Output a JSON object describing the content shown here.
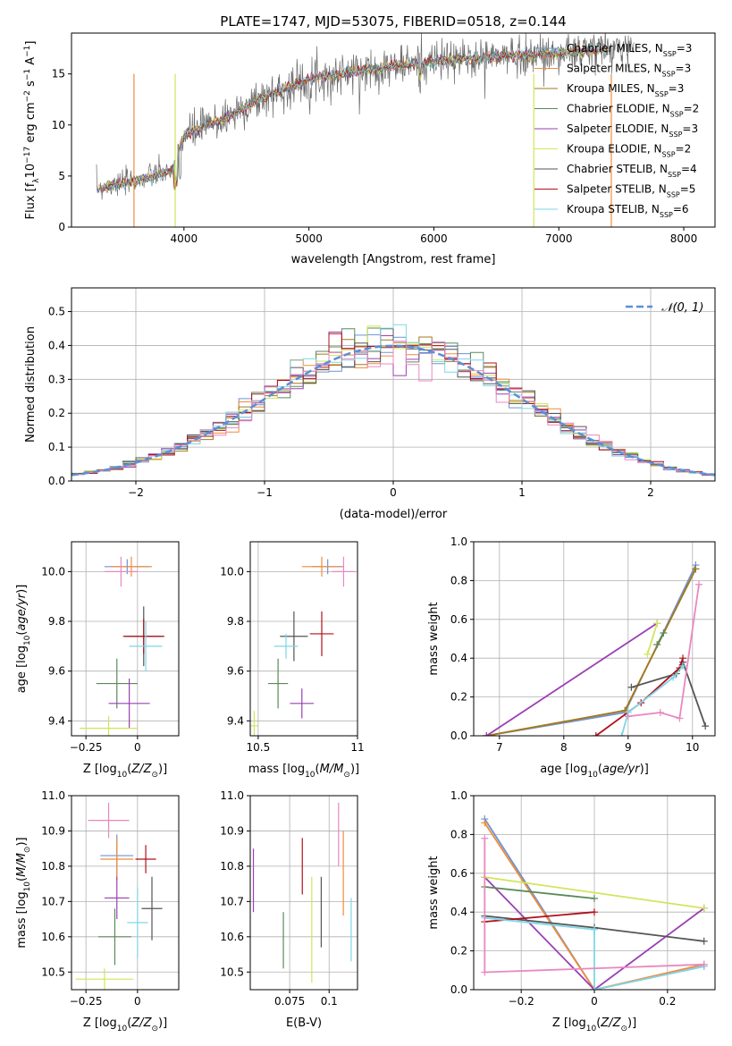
{
  "title": "PLATE=1747, MJD=53075, FIBERID=0518, z=0.144",
  "palette": {
    "Chabrier MILES": "#6a93d6",
    "Salpeter MILES": "#f08c3a",
    "Kroupa MILES": "#a07a20",
    "Chabrier ELODIE": "#5a8a5a",
    "Salpeter ELODIE": "#9b3fb5",
    "Kroupa ELODIE": "#cfe65a",
    "Chabrier STELIB": "#555555",
    "Salpeter STELIB": "#b0101a",
    "Kroupa STELIB": "#7fd6e6",
    "Kroupa STELIB alt": "#e888c0"
  },
  "chart_data": [
    {
      "type": "line",
      "title": "PLATE=1747, MJD=53075, FIBERID=0518, z=0.144",
      "xlabel": "wavelength [Angstrom, rest frame]",
      "ylabel": "Flux [fλ10⁻¹⁷ erg cm⁻² s⁻¹ A⁻¹]",
      "xlim": [
        3100,
        8250
      ],
      "ylim": [
        0,
        19
      ],
      "xticks": [
        4000,
        5000,
        6000,
        7000,
        8000
      ],
      "yticks": [
        0,
        5,
        10,
        15
      ],
      "grid": false,
      "legend_position": "top-right",
      "legend": [
        "Chabrier MILES, N_SSP=3",
        "Salpeter MILES, N_SSP=3",
        "Kroupa MILES, N_SSP=3",
        "Chabrier ELODIE, N_SSP=2",
        "Salpeter ELODIE, N_SSP=3",
        "Kroupa ELODIE, N_SSP=2",
        "Chabrier STELIB, N_SSP=4",
        "Salpeter STELIB, N_SSP=5",
        "Kroupa STELIB, N_SSP=6"
      ],
      "legend_html": [
        "Chabrier MILES, N<tspan baseline-shift='sub' font-size='8'>SSP</tspan>=3",
        "Salpeter MILES, N<tspan baseline-shift='sub' font-size='8'>SSP</tspan>=3",
        "Kroupa MILES, N<tspan baseline-shift='sub' font-size='8'>SSP</tspan>=3",
        "Chabrier ELODIE, N<tspan baseline-shift='sub' font-size='8'>SSP</tspan>=2",
        "Salpeter ELODIE, N<tspan baseline-shift='sub' font-size='8'>SSP</tspan>=3",
        "Kroupa ELODIE, N<tspan baseline-shift='sub' font-size='8'>SSP</tspan>=2",
        "Chabrier STELIB, N<tspan baseline-shift='sub' font-size='8'>SSP</tspan>=4",
        "Salpeter STELIB, N<tspan baseline-shift='sub' font-size='8'>SSP</tspan>=5",
        "Kroupa STELIB, N<tspan baseline-shift='sub' font-size='8'>SSP</tspan>=6"
      ],
      "spectrum_anchor": {
        "x": [
          3300,
          3600,
          3900,
          4000,
          4300,
          4600,
          5000,
          5500,
          6000,
          6500,
          7000,
          7500,
          8000
        ],
        "y": [
          3.8,
          4.5,
          5.5,
          9.0,
          10.5,
          12.5,
          14.5,
          15.5,
          16.2,
          16.7,
          17.0,
          17.5,
          17.8
        ]
      }
    },
    {
      "type": "histogram",
      "xlabel": "(data-model)/error",
      "ylabel": "Normed distribution",
      "xlim": [
        -2.5,
        2.5
      ],
      "ylim": [
        0,
        0.57
      ],
      "xticks": [
        -2,
        -1,
        0,
        1,
        2
      ],
      "yticks": [
        0.0,
        0.1,
        0.2,
        0.3,
        0.4,
        0.5
      ],
      "grid": true,
      "legend": [
        "𝒩(0, 1)"
      ],
      "legend_position": "top-right"
    },
    {
      "type": "scatter",
      "name": "age-vs-Z",
      "xlabel": "Z [log10(Z/Z⊙)]",
      "ylabel": "age [log10(age/yr)]",
      "xlim": [
        -0.32,
        0.2
      ],
      "ylim": [
        9.34,
        10.12
      ],
      "xticks": [
        -0.25,
        0.0
      ],
      "yticks": [
        9.4,
        9.6,
        9.8,
        10.0
      ],
      "grid": true,
      "points": [
        {
          "series": "Chabrier MILES",
          "x": -0.05,
          "y": 10.02,
          "xerr": 0.11,
          "yerr": 0.03
        },
        {
          "series": "Salpeter MILES",
          "x": -0.03,
          "y": 10.02,
          "xerr": 0.1,
          "yerr": 0.04
        },
        {
          "series": "Chabrier STELIB",
          "x": 0.03,
          "y": 9.74,
          "xerr": 0.09,
          "yerr": 0.12
        },
        {
          "series": "Salpeter STELIB",
          "x": 0.03,
          "y": 9.74,
          "xerr": 0.1,
          "yerr": 0.07
        },
        {
          "series": "Kroupa STELIB",
          "x": 0.04,
          "y": 9.7,
          "xerr": 0.08,
          "yerr": 0.1
        },
        {
          "series": "Chabrier ELODIE",
          "x": -0.1,
          "y": 9.55,
          "xerr": 0.1,
          "yerr": 0.1
        },
        {
          "series": "Salpeter ELODIE",
          "x": -0.04,
          "y": 9.47,
          "xerr": 0.1,
          "yerr": 0.1
        },
        {
          "series": "Kroupa ELODIE",
          "x": -0.14,
          "y": 9.37,
          "xerr": 0.14,
          "yerr": 0.05
        },
        {
          "series": "Kroupa STELIB alt",
          "x": -0.08,
          "y": 10.0,
          "xerr": 0.08,
          "yerr": 0.06
        }
      ]
    },
    {
      "type": "scatter",
      "name": "age-vs-mass",
      "xlabel": "mass [log10(M/M⊙)]",
      "ylabel": "",
      "xlim": [
        10.46,
        11.0
      ],
      "ylim": [
        9.34,
        10.12
      ],
      "xticks": [
        10.5,
        11.0
      ],
      "yticks": [
        9.4,
        9.6,
        9.8,
        10.0
      ],
      "grid": true,
      "points": [
        {
          "series": "Chabrier MILES",
          "x": 10.85,
          "y": 10.02,
          "xerr": 0.08,
          "yerr": 0.03
        },
        {
          "series": "Salpeter MILES",
          "x": 10.82,
          "y": 10.02,
          "xerr": 0.1,
          "yerr": 0.04
        },
        {
          "series": "Kroupa STELIB alt",
          "x": 10.93,
          "y": 10.0,
          "xerr": 0.06,
          "yerr": 0.06
        },
        {
          "series": "Chabrier STELIB",
          "x": 10.68,
          "y": 9.74,
          "xerr": 0.07,
          "yerr": 0.1
        },
        {
          "series": "Salpeter STELIB",
          "x": 10.82,
          "y": 9.75,
          "xerr": 0.06,
          "yerr": 0.09
        },
        {
          "series": "Kroupa STELIB",
          "x": 10.64,
          "y": 9.7,
          "xerr": 0.06,
          "yerr": 0.05
        },
        {
          "series": "Chabrier ELODIE",
          "x": 10.6,
          "y": 9.55,
          "xerr": 0.05,
          "yerr": 0.1
        },
        {
          "series": "Salpeter ELODIE",
          "x": 10.72,
          "y": 9.47,
          "xerr": 0.06,
          "yerr": 0.06
        },
        {
          "series": "Kroupa ELODIE",
          "x": 10.48,
          "y": 9.38,
          "xerr": 0.02,
          "yerr": 0.06
        }
      ]
    },
    {
      "type": "line",
      "name": "mass-weight-vs-age",
      "xlabel": "age [log10(age/yr)]",
      "ylabel": "mass weight",
      "xlim": [
        6.6,
        10.35
      ],
      "ylim": [
        0.0,
        1.0
      ],
      "xticks": [
        7,
        8,
        9,
        10
      ],
      "yticks": [
        0.0,
        0.2,
        0.4,
        0.6,
        0.8,
        1.0
      ],
      "grid": true,
      "series": [
        {
          "name": "Chabrier MILES",
          "x": [
            6.8,
            8.95,
            10.05
          ],
          "y": [
            0.0,
            0.12,
            0.88
          ]
        },
        {
          "name": "Salpeter MILES",
          "x": [
            6.8,
            8.95,
            10.05
          ],
          "y": [
            0.0,
            0.13,
            0.86
          ]
        },
        {
          "name": "Kroupa MILES",
          "x": [
            6.8,
            8.95,
            10.05
          ],
          "y": [
            0.0,
            0.13,
            0.86
          ]
        },
        {
          "name": "Salpeter ELODIE",
          "x": [
            6.8,
            9.45
          ],
          "y": [
            0.0,
            0.58
          ]
        },
        {
          "name": "Kroupa ELODIE",
          "x": [
            9.3,
            9.45
          ],
          "y": [
            0.42,
            0.58
          ]
        },
        {
          "name": "Chabrier ELODIE",
          "x": [
            9.45,
            9.55
          ],
          "y": [
            0.47,
            0.53
          ]
        },
        {
          "name": "Chabrier STELIB",
          "x": [
            9.05,
            9.75,
            9.85,
            10.2
          ],
          "y": [
            0.25,
            0.32,
            0.38,
            0.05
          ]
        },
        {
          "name": "Salpeter STELIB",
          "x": [
            8.5,
            9.2,
            9.8,
            9.85
          ],
          "y": [
            0.0,
            0.17,
            0.35,
            0.4
          ]
        },
        {
          "name": "Kroupa STELIB",
          "x": [
            8.9,
            9.0,
            9.7,
            9.85
          ],
          "y": [
            0.0,
            0.12,
            0.3,
            0.36
          ]
        },
        {
          "name": "Kroupa STELIB alt",
          "x": [
            9.0,
            9.5,
            9.8,
            10.1
          ],
          "y": [
            0.1,
            0.12,
            0.09,
            0.78
          ]
        }
      ]
    },
    {
      "type": "scatter",
      "name": "mass-vs-Z",
      "xlabel": "Z [log10(Z/Z⊙)]",
      "ylabel": "mass [log10(M/M⊙)]",
      "xlim": [
        -0.32,
        0.2
      ],
      "ylim": [
        10.45,
        11.0
      ],
      "xticks": [
        -0.25,
        0.0
      ],
      "yticks": [
        10.5,
        10.6,
        10.7,
        10.8,
        10.9,
        11.0
      ],
      "grid": true,
      "points": [
        {
          "series": "Kroupa STELIB alt",
          "x": -0.14,
          "y": 10.93,
          "xerr": 0.1,
          "yerr": 0.05
        },
        {
          "series": "Chabrier MILES",
          "x": -0.1,
          "y": 10.83,
          "xerr": 0.08,
          "yerr": 0.06
        },
        {
          "series": "Salpeter MILES",
          "x": -0.1,
          "y": 10.82,
          "xerr": 0.08,
          "yerr": 0.06
        },
        {
          "series": "Salpeter STELIB",
          "x": 0.04,
          "y": 10.82,
          "xerr": 0.05,
          "yerr": 0.04
        },
        {
          "series": "Salpeter ELODIE",
          "x": -0.1,
          "y": 10.71,
          "xerr": 0.06,
          "yerr": 0.06
        },
        {
          "series": "Chabrier STELIB",
          "x": 0.07,
          "y": 10.68,
          "xerr": 0.05,
          "yerr": 0.09
        },
        {
          "series": "Kroupa STELIB",
          "x": 0.0,
          "y": 10.64,
          "xerr": 0.05,
          "yerr": 0.1
        },
        {
          "series": "Chabrier ELODIE",
          "x": -0.11,
          "y": 10.6,
          "xerr": 0.08,
          "yerr": 0.08
        },
        {
          "series": "Kroupa ELODIE",
          "x": -0.16,
          "y": 10.48,
          "xerr": 0.14,
          "yerr": 0.03
        }
      ]
    },
    {
      "type": "scatter",
      "name": "mass-vs-EBV",
      "xlabel": "E(B-V)",
      "ylabel": "",
      "xlim": [
        0.05,
        0.118
      ],
      "ylim": [
        10.45,
        11.0
      ],
      "xticks": [
        0.075,
        0.1
      ],
      "yticks": [
        10.5,
        10.6,
        10.7,
        10.8,
        10.9,
        11.0
      ],
      "grid": true,
      "points": [
        {
          "series": "Salpeter ELODIE",
          "x": 0.052,
          "y": 10.76,
          "yerr": 0.09
        },
        {
          "series": "Chabrier ELODIE",
          "x": 0.071,
          "y": 10.59,
          "yerr": 0.08
        },
        {
          "series": "Salpeter STELIB",
          "x": 0.083,
          "y": 10.8,
          "yerr": 0.08
        },
        {
          "series": "Kroupa ELODIE",
          "x": 0.089,
          "y": 10.62,
          "yerr": 0.15
        },
        {
          "series": "Chabrier STELIB",
          "x": 0.095,
          "y": 10.67,
          "yerr": 0.1
        },
        {
          "series": "Kroupa STELIB alt",
          "x": 0.106,
          "y": 10.89,
          "yerr": 0.09
        },
        {
          "series": "Salpeter MILES",
          "x": 0.109,
          "y": 10.78,
          "yerr": 0.12
        },
        {
          "series": "Kroupa STELIB",
          "x": 0.114,
          "y": 10.62,
          "yerr": 0.09
        }
      ]
    },
    {
      "type": "line",
      "name": "mass-weight-vs-Z",
      "xlabel": "Z [log10(Z/Z⊙)]",
      "ylabel": "mass weight",
      "xlim": [
        -0.33,
        0.33
      ],
      "ylim": [
        0.0,
        1.0
      ],
      "xticks": [
        -0.2,
        0.0,
        0.2
      ],
      "yticks": [
        0.0,
        0.2,
        0.4,
        0.6,
        0.8,
        1.0
      ],
      "grid": true,
      "series": [
        {
          "name": "Chabrier MILES",
          "x": [
            -0.3,
            0.0,
            0.3
          ],
          "y": [
            0.88,
            0.0,
            0.12
          ]
        },
        {
          "name": "Salpeter MILES",
          "x": [
            -0.3,
            0.0,
            0.3
          ],
          "y": [
            0.86,
            0.0,
            0.13
          ]
        },
        {
          "name": "Salpeter ELODIE",
          "x": [
            -0.3,
            0.0,
            0.3
          ],
          "y": [
            0.58,
            0.0,
            0.42
          ]
        },
        {
          "name": "Kroupa ELODIE",
          "x": [
            -0.3,
            0.3
          ],
          "y": [
            0.58,
            0.42
          ]
        },
        {
          "name": "Chabrier ELODIE",
          "x": [
            -0.3,
            0.0
          ],
          "y": [
            0.53,
            0.47
          ]
        },
        {
          "name": "Chabrier STELIB",
          "x": [
            -0.3,
            0.0,
            0.3
          ],
          "y": [
            0.38,
            0.32,
            0.25
          ]
        },
        {
          "name": "Salpeter STELIB",
          "x": [
            -0.3,
            0.0
          ],
          "y": [
            0.35,
            0.4
          ]
        },
        {
          "name": "Kroupa STELIB",
          "x": [
            -0.3,
            0.0,
            0.0,
            0.3
          ],
          "y": [
            0.37,
            0.31,
            0.0,
            0.12
          ]
        },
        {
          "name": "Kroupa STELIB alt",
          "x": [
            -0.3,
            -0.3,
            0.3
          ],
          "y": [
            0.78,
            0.09,
            0.13
          ]
        }
      ]
    }
  ]
}
